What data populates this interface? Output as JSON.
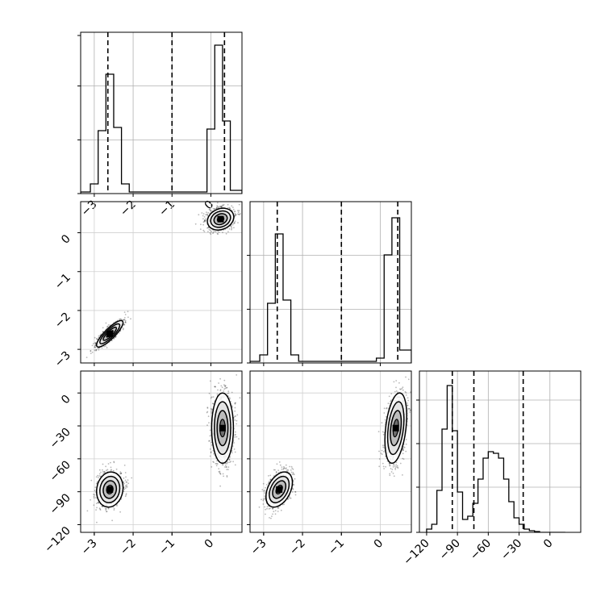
{
  "chart_data": [
    {
      "type": "histogram",
      "panel": "hist-p1",
      "x_ticks": [
        "−3",
        "−2",
        "−1",
        "0"
      ],
      "x_tick_values": [
        -3,
        -2,
        -1,
        0
      ],
      "xlim": [
        -3.35,
        0.8
      ],
      "ylim": [
        0,
        1.0
      ],
      "y_gridlines": [
        0.333,
        0.667
      ],
      "bin_edges": [
        -3.35,
        -3.1,
        -2.9,
        -2.7,
        -2.5,
        -2.3,
        -2.1,
        -0.3,
        -0.1,
        0.1,
        0.3,
        0.5,
        0.8
      ],
      "counts": [
        0.01,
        0.06,
        0.39,
        0.74,
        0.41,
        0.06,
        0.01,
        0.01,
        0.4,
        0.92,
        0.45,
        0.02
      ],
      "quantile_lines": [
        -2.65,
        -1.0,
        0.35
      ]
    },
    {
      "type": "histogram",
      "panel": "hist-p2",
      "xlim": [
        -3.35,
        0.8
      ],
      "ylim": [
        0,
        1.0
      ],
      "y_gridlines": [
        0.333,
        0.667
      ],
      "bin_edges": [
        -3.35,
        -3.1,
        -2.9,
        -2.7,
        -2.5,
        -2.3,
        -2.1,
        -0.3,
        -0.1,
        0.1,
        0.3,
        0.5,
        0.8
      ],
      "counts": [
        0.01,
        0.05,
        0.37,
        0.8,
        0.39,
        0.05,
        0.01,
        0.01,
        0.03,
        0.67,
        0.9,
        0.08
      ],
      "quantile_lines": [
        -2.65,
        -1.0,
        0.45
      ]
    },
    {
      "type": "histogram",
      "panel": "hist-p3",
      "x_ticks": [
        "−120",
        "−90",
        "−60",
        "−30",
        "0"
      ],
      "x_tick_values": [
        -120,
        -90,
        -60,
        -30,
        0
      ],
      "xlim": [
        -127,
        30
      ],
      "ylim": [
        0,
        1.0
      ],
      "y_gridlines": [
        0.28,
        0.55,
        0.82
      ],
      "bin_edges": [
        -120,
        -115,
        -110,
        -105,
        -100,
        -95,
        -90,
        -85,
        -80,
        -75,
        -70,
        -65,
        -60,
        -55,
        -50,
        -45,
        -40,
        -35,
        -30,
        -25,
        -20,
        -15,
        -10,
        -5,
        0,
        5,
        10,
        15
      ],
      "counts": [
        0.02,
        0.05,
        0.26,
        0.64,
        0.91,
        0.63,
        0.25,
        0.08,
        0.1,
        0.18,
        0.33,
        0.46,
        0.5,
        0.49,
        0.46,
        0.33,
        0.19,
        0.09,
        0.05,
        0.02,
        0.01,
        0.005,
        0.0,
        0.0,
        0.0,
        0.0,
        0.0
      ],
      "quantile_lines": [
        -95,
        -74,
        -26
      ]
    },
    {
      "type": "scatter-contour",
      "panel": "p1-vs-p2",
      "y_ticks": [
        "0",
        "−1",
        "−2",
        "−3"
      ],
      "y_tick_values": [
        0,
        -1,
        -2,
        -3
      ],
      "xlim": [
        -3.35,
        0.8
      ],
      "ylim": [
        -3.35,
        0.8
      ],
      "clusters": [
        {
          "cx": -2.6,
          "cy": -2.6,
          "sx": 0.17,
          "sy": 0.17,
          "rho": 0.85,
          "n": 900
        },
        {
          "cx": 0.25,
          "cy": 0.35,
          "sx": 0.17,
          "sy": 0.14,
          "rho": 0.2,
          "n": 900
        }
      ]
    },
    {
      "type": "scatter-contour",
      "panel": "p1-vs-p3",
      "y_ticks": [
        "0",
        "−30",
        "−60",
        "−90",
        "−120"
      ],
      "y_tick_values": [
        0,
        -30,
        -60,
        -90,
        -120
      ],
      "xlim": [
        -3.35,
        0.8
      ],
      "ylim": [
        -127,
        20
      ],
      "clusters": [
        {
          "cx": -2.6,
          "cy": -88,
          "sx": 0.17,
          "sy": 8,
          "rho": 0.1,
          "n": 900
        },
        {
          "cx": 0.3,
          "cy": -32,
          "sx": 0.14,
          "sy": 16,
          "rho": 0.0,
          "n": 1000
        }
      ]
    },
    {
      "type": "scatter-contour",
      "panel": "p2-vs-p3",
      "xlim": [
        -3.35,
        0.8
      ],
      "ylim": [
        -127,
        20
      ],
      "clusters": [
        {
          "cx": -2.6,
          "cy": -88,
          "sx": 0.17,
          "sy": 8,
          "rho": 0.4,
          "n": 900
        },
        {
          "cx": 0.4,
          "cy": -32,
          "sx": 0.14,
          "sy": 16,
          "rho": 0.35,
          "n": 1000
        }
      ]
    },
    {
      "type": "shared-x-axis",
      "panel": "p2-x-axis",
      "x_ticks": [
        "−3",
        "−2",
        "−1",
        "0"
      ],
      "x_tick_values": [
        -3,
        -2,
        -1,
        0
      ]
    }
  ]
}
